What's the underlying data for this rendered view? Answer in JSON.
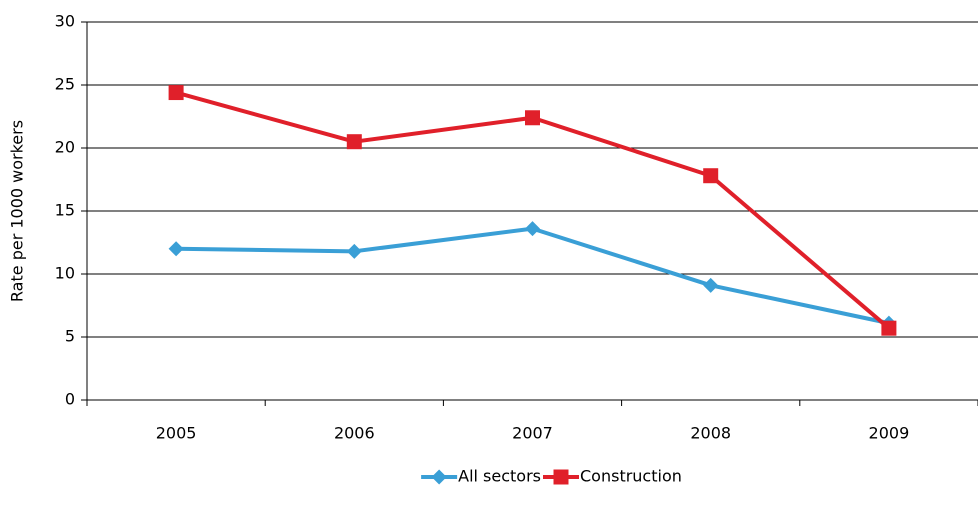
{
  "chart_data": {
    "type": "line",
    "y_label": "Rate per 1000 workers",
    "categories": [
      "2005",
      "2006",
      "2007",
      "2008",
      "2009"
    ],
    "series": [
      {
        "name": "All sectors",
        "color": "#3a9fd6",
        "marker": "diamond",
        "values": [
          12.0,
          11.8,
          13.6,
          9.1,
          6.1
        ]
      },
      {
        "name": "Construction",
        "color": "#e0202a",
        "marker": "square",
        "values": [
          24.4,
          20.5,
          22.4,
          17.8,
          5.7
        ]
      }
    ],
    "ylim": [
      0,
      30
    ],
    "yticks": [
      0,
      5,
      10,
      15,
      20,
      25,
      30
    ],
    "grid": true,
    "legend": "bottom"
  }
}
